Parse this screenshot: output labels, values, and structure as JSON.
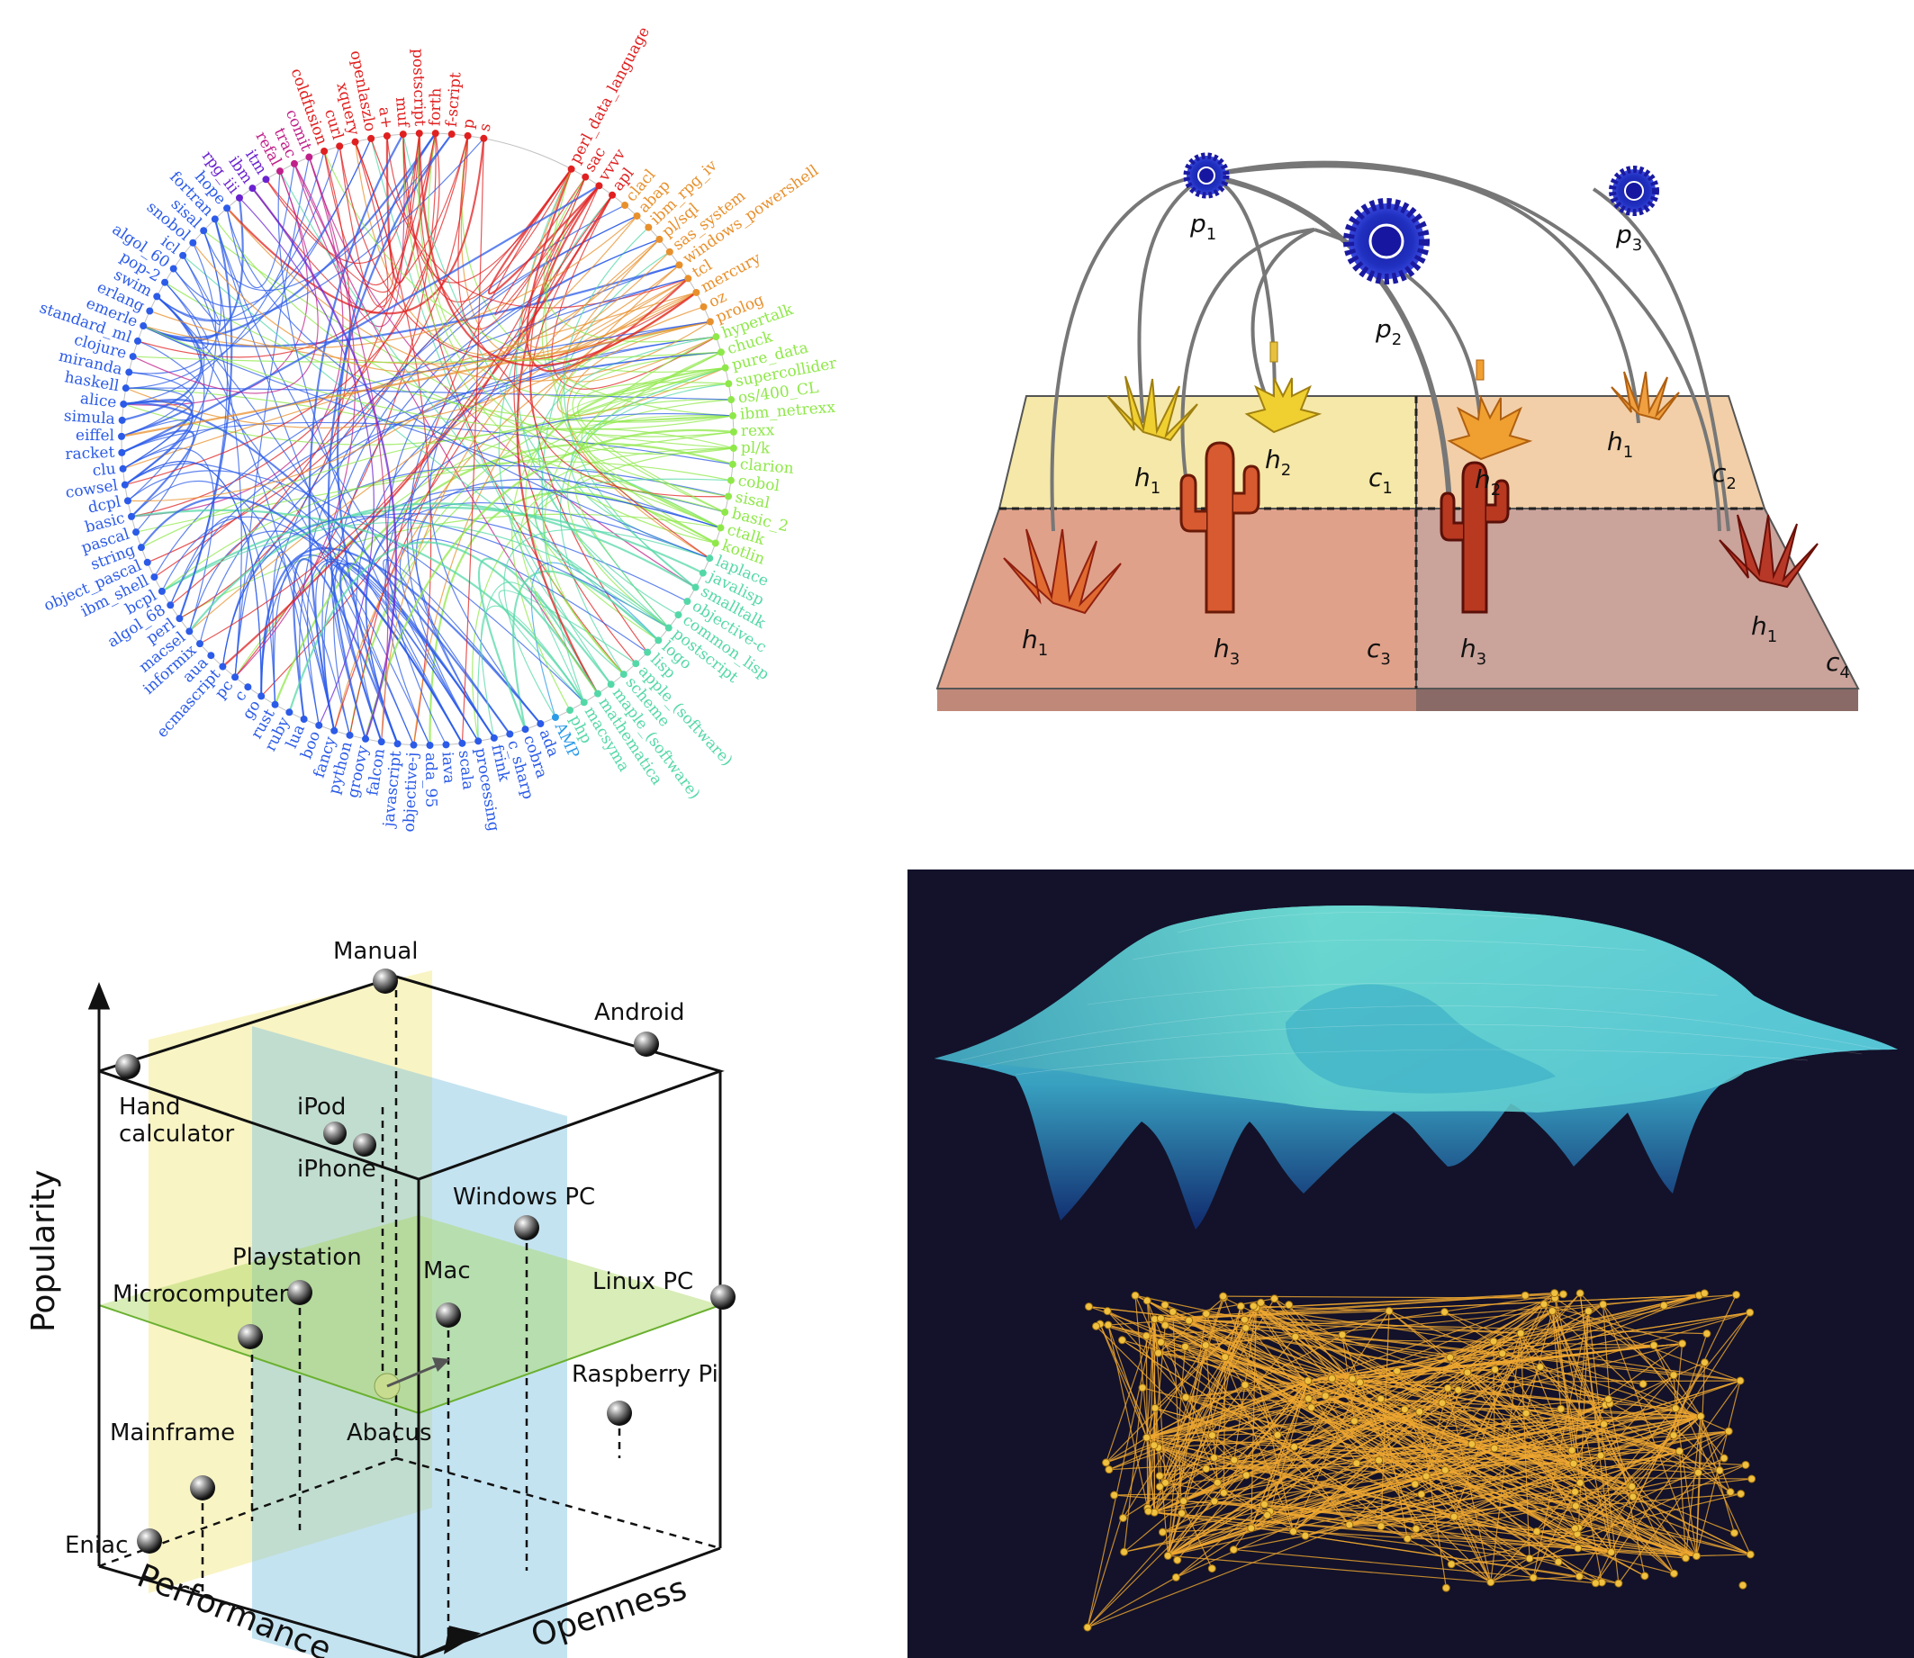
{
  "colors": {
    "chord_blue": "#2b5be8",
    "chord_teal": "#55d8a8",
    "chord_green": "#8fe84a",
    "chord_orange": "#e8902c",
    "chord_red": "#e02020",
    "chord_purple": "#6a22d0",
    "plot_bg": "#13122a",
    "surface_cyan": "#60d8d0",
    "network_orange": "#f0a830"
  },
  "chord_diagram": {
    "labels": [
      {
        "text": "perl_data_language",
        "color": "#e02020"
      },
      {
        "text": "sac",
        "color": "#e02020"
      },
      {
        "text": "vvvv",
        "color": "#e02020"
      },
      {
        "text": "apl",
        "color": "#e02020"
      },
      {
        "text": "clacl",
        "color": "#e8902c"
      },
      {
        "text": "abap",
        "color": "#e8902c"
      },
      {
        "text": "ibm_rpg_iv",
        "color": "#e8902c"
      },
      {
        "text": "pl/sql",
        "color": "#e8902c"
      },
      {
        "text": "sas_system",
        "color": "#e8902c"
      },
      {
        "text": "windows_powershell",
        "color": "#e8902c"
      },
      {
        "text": "tcl",
        "color": "#e8902c"
      },
      {
        "text": "mercury",
        "color": "#e8902c"
      },
      {
        "text": "oz",
        "color": "#e8902c"
      },
      {
        "text": "prolog",
        "color": "#e8902c"
      },
      {
        "text": "hypertalk",
        "color": "#8fe84a"
      },
      {
        "text": "chuck",
        "color": "#8fe84a"
      },
      {
        "text": "pure_data",
        "color": "#8fe84a"
      },
      {
        "text": "supercollider",
        "color": "#8fe84a"
      },
      {
        "text": "os/400_CL",
        "color": "#8fe84a"
      },
      {
        "text": "ibm_netrexx",
        "color": "#8fe84a"
      },
      {
        "text": "rexx",
        "color": "#8fe84a"
      },
      {
        "text": "pl/k",
        "color": "#8fe84a"
      },
      {
        "text": "clarion",
        "color": "#8fe84a"
      },
      {
        "text": "cobol",
        "color": "#8fe84a"
      },
      {
        "text": "sisal",
        "color": "#8fe84a"
      },
      {
        "text": "basic_2",
        "color": "#8fe84a"
      },
      {
        "text": "ctalk",
        "color": "#8fe84a"
      },
      {
        "text": "kotlin",
        "color": "#8fe84a"
      },
      {
        "text": "laplace",
        "color": "#55d8a8"
      },
      {
        "text": "javalisp",
        "color": "#55d8a8"
      },
      {
        "text": "smalltalk",
        "color": "#55d8a8"
      },
      {
        "text": "objective-c",
        "color": "#55d8a8"
      },
      {
        "text": "common_lisp",
        "color": "#55d8a8"
      },
      {
        "text": "postscript",
        "color": "#55d8a8"
      },
      {
        "text": "logo",
        "color": "#55d8a8"
      },
      {
        "text": "lisp",
        "color": "#55d8a8"
      },
      {
        "text": "apple_(software)",
        "color": "#55d8a8"
      },
      {
        "text": "scheme",
        "color": "#55d8a8"
      },
      {
        "text": "maple_(software)",
        "color": "#55d8a8"
      },
      {
        "text": "mathematica",
        "color": "#55d8a8"
      },
      {
        "text": "macsyma",
        "color": "#55d8a8"
      },
      {
        "text": "php",
        "color": "#55d8a8"
      },
      {
        "text": "AMP",
        "color": "#2b9be8"
      },
      {
        "text": "ada",
        "color": "#2b5be8"
      },
      {
        "text": "cobra",
        "color": "#2b5be8"
      },
      {
        "text": "c_sharp",
        "color": "#2b5be8"
      },
      {
        "text": "frink",
        "color": "#2b5be8"
      },
      {
        "text": "processing",
        "color": "#2b5be8"
      },
      {
        "text": "scala",
        "color": "#2b5be8"
      },
      {
        "text": "iava",
        "color": "#2b5be8"
      },
      {
        "text": "ada_95",
        "color": "#2b5be8"
      },
      {
        "text": "objective-j",
        "color": "#2b5be8"
      },
      {
        "text": "javascript",
        "color": "#2b5be8"
      },
      {
        "text": "falcon",
        "color": "#2b5be8"
      },
      {
        "text": "groovy",
        "color": "#2b5be8"
      },
      {
        "text": "python",
        "color": "#2b5be8"
      },
      {
        "text": "fancy",
        "color": "#2b5be8"
      },
      {
        "text": "boo",
        "color": "#2b5be8"
      },
      {
        "text": "lua",
        "color": "#2b5be8"
      },
      {
        "text": "ruby",
        "color": "#2b5be8"
      },
      {
        "text": "rust",
        "color": "#2b5be8"
      },
      {
        "text": "go",
        "color": "#2b5be8"
      },
      {
        "text": "c",
        "color": "#2b5be8"
      },
      {
        "text": "pc",
        "color": "#2b5be8"
      },
      {
        "text": "ecmascript",
        "color": "#2b5be8"
      },
      {
        "text": "aua",
        "color": "#2b5be8"
      },
      {
        "text": "informix",
        "color": "#2b5be8"
      },
      {
        "text": "macsel",
        "color": "#2b5be8"
      },
      {
        "text": "perl",
        "color": "#2b5be8"
      },
      {
        "text": "algol_68",
        "color": "#2b5be8"
      },
      {
        "text": "bcpl",
        "color": "#2b5be8"
      },
      {
        "text": "ibm_shell",
        "color": "#2b5be8"
      },
      {
        "text": "object_pascal",
        "color": "#2b5be8"
      },
      {
        "text": "string",
        "color": "#2b5be8"
      },
      {
        "text": "pascal",
        "color": "#2b5be8"
      },
      {
        "text": "basic",
        "color": "#2b5be8"
      },
      {
        "text": "dcpl",
        "color": "#2b5be8"
      },
      {
        "text": "cowsel",
        "color": "#2b5be8"
      },
      {
        "text": "clu",
        "color": "#2b5be8"
      },
      {
        "text": "racket",
        "color": "#2b5be8"
      },
      {
        "text": "eiffel",
        "color": "#2b5be8"
      },
      {
        "text": "simula",
        "color": "#2b5be8"
      },
      {
        "text": "alice",
        "color": "#2b5be8"
      },
      {
        "text": "haskell",
        "color": "#2b5be8"
      },
      {
        "text": "miranda",
        "color": "#2b5be8"
      },
      {
        "text": "clojure",
        "color": "#2b5be8"
      },
      {
        "text": "standard_ml",
        "color": "#2b5be8"
      },
      {
        "text": "emerle",
        "color": "#2b5be8"
      },
      {
        "text": "erlang",
        "color": "#2b5be8"
      },
      {
        "text": "swim",
        "color": "#2b5be8"
      },
      {
        "text": "pop-2",
        "color": "#2b5be8"
      },
      {
        "text": "algol_60",
        "color": "#2b5be8"
      },
      {
        "text": "icl",
        "color": "#2b5be8"
      },
      {
        "text": "snobol",
        "color": "#2b5be8"
      },
      {
        "text": "sisal",
        "color": "#2b5be8"
      },
      {
        "text": "fortran",
        "color": "#2b5be8"
      },
      {
        "text": "hope",
        "color": "#2b5be8"
      },
      {
        "text": "rpg_iii",
        "color": "#6a22d0"
      },
      {
        "text": "ibm",
        "color": "#6a22d0"
      },
      {
        "text": "itm",
        "color": "#6a22d0"
      },
      {
        "text": "refal",
        "color": "#c0208a"
      },
      {
        "text": "trac",
        "color": "#c0208a"
      },
      {
        "text": "comit",
        "color": "#c0208a"
      },
      {
        "text": "coldfusion",
        "color": "#e02020"
      },
      {
        "text": "curl",
        "color": "#e02020"
      },
      {
        "text": "xquery",
        "color": "#e02020"
      },
      {
        "text": "openlaszlo",
        "color": "#e02020"
      },
      {
        "text": "a+",
        "color": "#e02020"
      },
      {
        "text": "muf",
        "color": "#e02020"
      },
      {
        "text": "postscript",
        "color": "#e02020"
      },
      {
        "text": "forth",
        "color": "#e02020"
      },
      {
        "text": "f-script",
        "color": "#e02020"
      },
      {
        "text": "p",
        "color": "#e02020"
      },
      {
        "text": "s",
        "color": "#e02020"
      }
    ]
  },
  "habitat": {
    "pollinators": [
      {
        "id": "p1",
        "name": "p",
        "sub": "1"
      },
      {
        "id": "p2",
        "name": "p",
        "sub": "2"
      },
      {
        "id": "p3",
        "name": "p",
        "sub": "3"
      }
    ],
    "cells": [
      {
        "name": "c",
        "sub": "1"
      },
      {
        "name": "c",
        "sub": "2"
      },
      {
        "name": "c",
        "sub": "3"
      },
      {
        "name": "c",
        "sub": "4"
      }
    ],
    "plants": [
      {
        "name": "h",
        "sub": "1",
        "kind": "grass",
        "cell": "c1"
      },
      {
        "name": "h",
        "sub": "2",
        "kind": "flower",
        "cell": "c1"
      },
      {
        "name": "h",
        "sub": "2",
        "kind": "flower",
        "cell": "c2"
      },
      {
        "name": "h",
        "sub": "1",
        "kind": "grass",
        "cell": "c2"
      },
      {
        "name": "h",
        "sub": "1",
        "kind": "grass",
        "cell": "c3"
      },
      {
        "name": "h",
        "sub": "3",
        "kind": "cactus",
        "cell": "c3"
      },
      {
        "name": "h",
        "sub": "3",
        "kind": "cactus",
        "cell": "c4"
      },
      {
        "name": "h",
        "sub": "1",
        "kind": "grass",
        "cell": "c4"
      }
    ]
  },
  "cube": {
    "axes": {
      "y": "Popularity",
      "x": "Performance",
      "z": "Openness"
    },
    "points": [
      {
        "label": "Manual"
      },
      {
        "label": "Android"
      },
      {
        "label": "Hand\ncalculator"
      },
      {
        "label": "iPod"
      },
      {
        "label": "iPhone"
      },
      {
        "label": "Windows PC"
      },
      {
        "label": "Playstation"
      },
      {
        "label": "Mac"
      },
      {
        "label": "Linux PC"
      },
      {
        "label": "Microcomputer"
      },
      {
        "label": "Raspberry Pi"
      },
      {
        "label": "Mainframe"
      },
      {
        "label": "Abacus"
      },
      {
        "label": "Eniac"
      }
    ]
  },
  "landscape": {
    "surface_color": "#60d8d0",
    "network_color": "#f0a830",
    "background": "#13122a"
  }
}
